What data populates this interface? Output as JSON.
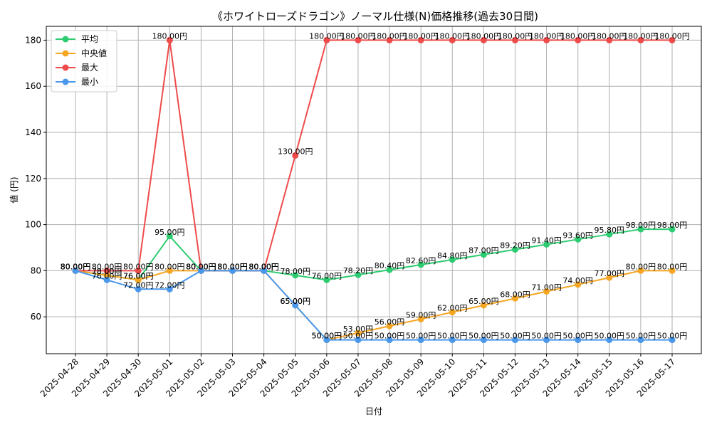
{
  "chart_data": {
    "type": "line",
    "title": "《ホワイトローズドラゴン》ノーマル仕様(N)価格推移(過去30日間)",
    "xlabel": "日付",
    "ylabel": "値 (円)",
    "ylim": [
      44,
      186
    ],
    "yticks": [
      60,
      80,
      100,
      120,
      140,
      160,
      180
    ],
    "grid": true,
    "legend_position": "top-left",
    "label_suffix": "円",
    "categories": [
      "2025-04-28",
      "2025-04-29",
      "2025-04-30",
      "2025-05-01",
      "2025-05-02",
      "2025-05-03",
      "2025-05-04",
      "2025-05-05",
      "2025-05-06",
      "2025-05-07",
      "2025-05-08",
      "2025-05-09",
      "2025-05-10",
      "2025-05-11",
      "2025-05-12",
      "2025-05-13",
      "2025-05-14",
      "2025-05-15",
      "2025-05-16",
      "2025-05-17"
    ],
    "series": [
      {
        "name": "平均",
        "color": "#2ecc71",
        "values": [
          80,
          78,
          76,
          95,
          80,
          80,
          80,
          78,
          76,
          78.2,
          80.4,
          82.6,
          84.8,
          87,
          89.2,
          91.4,
          93.6,
          95.8,
          98,
          98
        ]
      },
      {
        "name": "中央値",
        "color": "#f5a623",
        "values": [
          80,
          78,
          76,
          80,
          80,
          80,
          80,
          65,
          50,
          53,
          56,
          59,
          62,
          65,
          68,
          71,
          74,
          77,
          80,
          80
        ]
      },
      {
        "name": "最大",
        "color": "#ef4b4b",
        "values": [
          80,
          80,
          80,
          180,
          80,
          80,
          80,
          130,
          180,
          180,
          180,
          180,
          180,
          180,
          180,
          180,
          180,
          180,
          180,
          180
        ]
      },
      {
        "name": "最小",
        "color": "#4a98ec",
        "values": [
          80,
          76,
          72,
          72,
          80,
          80,
          80,
          65,
          50,
          50,
          50,
          50,
          50,
          50,
          50,
          50,
          50,
          50,
          50,
          50
        ]
      }
    ]
  }
}
